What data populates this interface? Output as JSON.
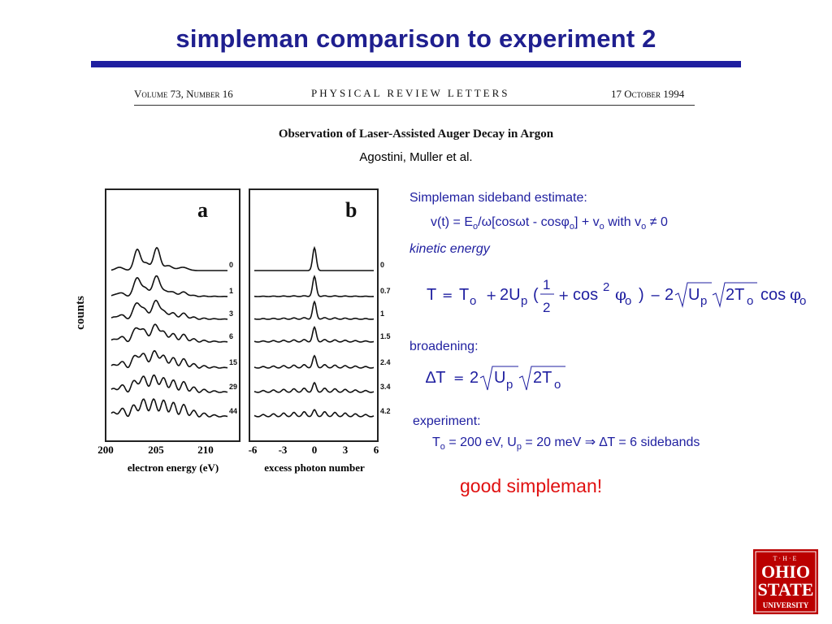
{
  "slide": {
    "title": "simpleman comparison to experiment 2",
    "good_note": "good simpleman!"
  },
  "paper_header": {
    "volume": "Volume 73, Number 16",
    "journal": "PHYSICAL REVIEW LETTERS",
    "date": "17 October 1994",
    "title": "Observation of Laser-Assisted Auger Decay in Argon",
    "authors": "Agostini, Muller et al."
  },
  "right_panel": {
    "estimate_label": "Simpleman sideband estimate:",
    "velocity_eq": {
      "a": "v(t) = E",
      "sub_o1": "o",
      "b": "/ω[cosωt - cosφ",
      "sub_o2": "o",
      "c": "] + v",
      "sub_o3": "o",
      "d": " with v",
      "sub_o4": "o",
      "e": " ≠ 0"
    },
    "kinetic_label": "kinetic energy",
    "kinetic_eq": {
      "T": "T",
      "eq": "=",
      "T2": "T",
      "o1": "o",
      "plus1": "+",
      "two1": "2U",
      "p1": "p",
      "lp": "(",
      "num": "1",
      "den": "2",
      "plus2": "+",
      "cos1": "cos",
      "sq": "2",
      "phi1": "φ",
      "o2": "o",
      "rp": ")",
      "minus": "−",
      "two2": "2",
      "U": "U",
      "p2": "p",
      "twoT": "2T",
      "o3": "o",
      "cos2": "cos",
      "phi2": "φ",
      "o4": "o"
    },
    "broadening_label": "broadening:",
    "broadening_eq": {
      "dT": "∆T",
      "eq": "=",
      "two": "2",
      "U": "U",
      "p": "p",
      "twoT": "2T",
      "o": "o"
    },
    "experiment_label": "experiment:",
    "experiment_text": {
      "a": "T",
      "sub_o": "o",
      "b": " = 200 eV, U",
      "sub_p": "p",
      "c": " = 20 meV ⇒ ∆T = 6 sidebands"
    }
  },
  "figure": {
    "y_label": "counts",
    "panel_a": {
      "letter": "a",
      "x_ticks": [
        "200",
        "205",
        "210"
      ],
      "x_label": "electron energy (eV)",
      "curve_labels": [
        "0",
        "1",
        "3",
        "6",
        "15",
        "29",
        "44"
      ]
    },
    "panel_b": {
      "letter": "b",
      "x_ticks": [
        "-6",
        "-3",
        "0",
        "3",
        "6"
      ],
      "x_label": "excess photon number",
      "curve_labels": [
        "0",
        "0.7",
        "1",
        "1.5",
        "2.4",
        "3.4",
        "4.2"
      ]
    }
  },
  "logo": {
    "lines": [
      "T·H·E",
      "OHIO",
      "STATE",
      "UNIVERSITY"
    ],
    "color": "#bb0000"
  },
  "colors": {
    "title": "#1f1f8f",
    "text_blue": "#1f1fa0",
    "accent_red": "#e01010"
  }
}
